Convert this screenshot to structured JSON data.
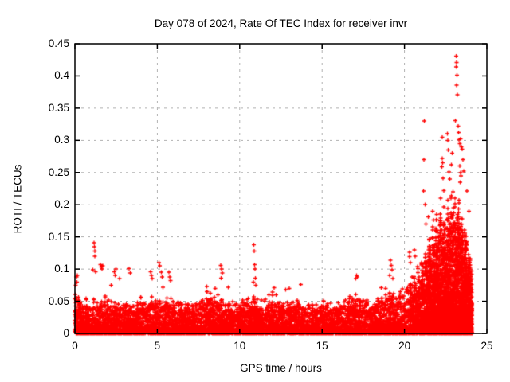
{
  "window": {
    "background": "#ffffff"
  },
  "chart_data": {
    "type": "scatter",
    "title": "Day 078 of 2024, Rate Of TEC Index for receiver invr",
    "xlabel": "GPS time / hours",
    "ylabel": "ROTI / TECUs",
    "xlim": [
      0,
      25
    ],
    "ylim": [
      0,
      0.45
    ],
    "xticks": [
      {
        "v": 0,
        "label": "0"
      },
      {
        "v": 5,
        "label": "5"
      },
      {
        "v": 10,
        "label": "10"
      },
      {
        "v": 15,
        "label": "15"
      },
      {
        "v": 20,
        "label": "20"
      },
      {
        "v": 25,
        "label": "25"
      }
    ],
    "yticks": [
      {
        "v": 0,
        "label": "0"
      },
      {
        "v": 0.05,
        "label": "0.05"
      },
      {
        "v": 0.1,
        "label": "0.1"
      },
      {
        "v": 0.15,
        "label": "0.15"
      },
      {
        "v": 0.2,
        "label": "0.2"
      },
      {
        "v": 0.25,
        "label": "0.25"
      },
      {
        "v": 0.3,
        "label": "0.3"
      },
      {
        "v": 0.35,
        "label": "0.35"
      },
      {
        "v": 0.4,
        "label": "0.4"
      },
      {
        "v": 0.45,
        "label": "0.45"
      }
    ],
    "grid": true,
    "legend": "none",
    "grid_color": "#b3b3b3",
    "axis_color": "#000000",
    "marker": {
      "shape": "plus",
      "color": "#ff0000",
      "half_size": 2.5,
      "stroke_width": 1.3
    },
    "series": [
      {
        "name": "ROTI",
        "x_hours_range": [
          0,
          24.1
        ],
        "dense_band": {
          "step_hours": 0.5,
          "canopy_max": [
            0.07,
            0.055,
            0.06,
            0.055,
            0.065,
            0.06,
            0.055,
            0.05,
            0.06,
            0.065,
            0.06,
            0.065,
            0.06,
            0.055,
            0.05,
            0.06,
            0.07,
            0.065,
            0.06,
            0.055,
            0.055,
            0.065,
            0.06,
            0.055,
            0.065,
            0.06,
            0.055,
            0.06,
            0.055,
            0.05,
            0.055,
            0.05,
            0.055,
            0.06,
            0.075,
            0.06,
            0.055,
            0.06,
            0.08,
            0.07,
            0.09,
            0.105,
            0.115,
            0.155,
            0.2,
            0.215,
            0.245,
            0.21,
            0.13
          ],
          "n_points": 8200,
          "n_evening_extra": 2800,
          "evening_range": [
            20.3,
            24.1
          ],
          "power": 2.2,
          "evening_power": 1.8,
          "seed": 78
        },
        "outliers": [
          [
            0.05,
            0.075
          ],
          [
            0.1,
            0.088
          ],
          [
            0.12,
            0.08
          ],
          [
            0.15,
            0.09
          ],
          [
            1.15,
            0.141
          ],
          [
            1.18,
            0.135
          ],
          [
            1.2,
            0.128
          ],
          [
            1.22,
            0.12
          ],
          [
            1.1,
            0.099
          ],
          [
            1.25,
            0.096
          ],
          [
            1.55,
            0.107
          ],
          [
            1.6,
            0.103
          ],
          [
            1.65,
            0.1
          ],
          [
            1.7,
            0.105
          ],
          [
            2.2,
            0.075
          ],
          [
            2.4,
            0.096
          ],
          [
            2.45,
            0.09
          ],
          [
            2.5,
            0.1
          ],
          [
            2.7,
            0.085
          ],
          [
            3.3,
            0.101
          ],
          [
            3.35,
            0.094
          ],
          [
            4.6,
            0.096
          ],
          [
            4.65,
            0.09
          ],
          [
            4.7,
            0.085
          ],
          [
            5.1,
            0.11
          ],
          [
            5.15,
            0.105
          ],
          [
            5.25,
            0.095
          ],
          [
            5.3,
            0.088
          ],
          [
            5.35,
            0.072
          ],
          [
            5.7,
            0.095
          ],
          [
            5.75,
            0.088
          ],
          [
            5.8,
            0.082
          ],
          [
            8.0,
            0.073
          ],
          [
            8.5,
            0.07
          ],
          [
            8.85,
            0.106
          ],
          [
            8.9,
            0.1
          ],
          [
            8.95,
            0.094
          ],
          [
            8.88,
            0.086
          ],
          [
            9.3,
            0.072
          ],
          [
            10.82,
            0.08
          ],
          [
            10.85,
            0.138
          ],
          [
            10.88,
            0.128
          ],
          [
            10.9,
            0.107
          ],
          [
            10.92,
            0.1
          ],
          [
            10.95,
            0.086
          ],
          [
            10.98,
            0.075
          ],
          [
            12.1,
            0.071
          ],
          [
            12.8,
            0.068
          ],
          [
            13.0,
            0.07
          ],
          [
            13.7,
            0.076
          ],
          [
            17.05,
            0.085
          ],
          [
            17.1,
            0.09
          ],
          [
            17.15,
            0.088
          ],
          [
            18.6,
            0.071
          ],
          [
            19.1,
            0.09
          ],
          [
            19.15,
            0.114
          ],
          [
            19.2,
            0.106
          ],
          [
            19.25,
            0.099
          ],
          [
            19.3,
            0.085
          ],
          [
            20.3,
            0.126
          ],
          [
            20.32,
            0.119
          ],
          [
            20.35,
            0.11
          ],
          [
            20.6,
            0.13
          ],
          [
            20.65,
            0.12
          ],
          [
            21.2,
            0.33
          ],
          [
            21.18,
            0.27
          ],
          [
            21.15,
            0.221
          ],
          [
            21.25,
            0.2
          ],
          [
            21.3,
            0.17
          ],
          [
            21.45,
            0.181
          ],
          [
            21.7,
            0.19
          ],
          [
            21.75,
            0.176
          ],
          [
            22.28,
            0.305
          ],
          [
            22.3,
            0.272
          ],
          [
            22.32,
            0.265
          ],
          [
            22.27,
            0.259
          ],
          [
            22.35,
            0.241
          ],
          [
            22.4,
            0.222
          ],
          [
            22.2,
            0.21
          ],
          [
            22.6,
            0.31
          ],
          [
            22.62,
            0.3
          ],
          [
            22.65,
            0.285
          ],
          [
            22.7,
            0.251
          ],
          [
            22.75,
            0.24
          ],
          [
            22.85,
            0.262
          ],
          [
            22.9,
            0.28
          ],
          [
            22.95,
            0.22
          ],
          [
            23.15,
            0.431
          ],
          [
            23.17,
            0.421
          ],
          [
            23.14,
            0.414
          ],
          [
            23.18,
            0.401
          ],
          [
            23.16,
            0.386
          ],
          [
            23.2,
            0.371
          ],
          [
            23.1,
            0.331
          ],
          [
            23.25,
            0.322
          ],
          [
            23.28,
            0.312
          ],
          [
            23.3,
            0.301
          ],
          [
            23.35,
            0.295
          ],
          [
            23.4,
            0.302
          ],
          [
            23.45,
            0.29
          ],
          [
            23.5,
            0.286
          ],
          [
            23.35,
            0.26
          ],
          [
            23.4,
            0.25
          ],
          [
            23.42,
            0.245
          ],
          [
            23.38,
            0.235
          ],
          [
            23.55,
            0.27
          ],
          [
            23.6,
            0.252
          ],
          [
            23.8,
            0.221
          ],
          [
            23.9,
            0.19
          ]
        ]
      }
    ]
  }
}
